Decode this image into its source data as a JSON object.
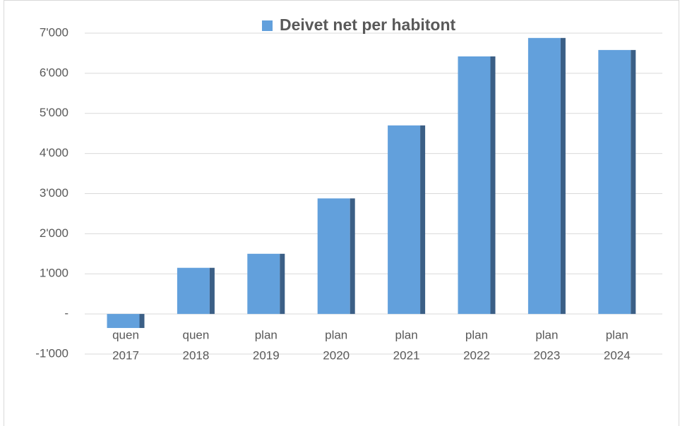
{
  "chart_data": {
    "type": "bar",
    "categories": [
      [
        "quen",
        "2017"
      ],
      [
        "quen",
        "2018"
      ],
      [
        "plan",
        "2019"
      ],
      [
        "plan",
        "2020"
      ],
      [
        "plan",
        "2021"
      ],
      [
        "plan",
        "2022"
      ],
      [
        "plan",
        "2023"
      ],
      [
        "plan",
        "2024"
      ]
    ],
    "series": [
      {
        "name": "Deivet net per habitont",
        "color": "#62a0dc",
        "values": [
          -350,
          1150,
          1500,
          2880,
          4700,
          6420,
          6880,
          6580
        ]
      }
    ],
    "ylim": [
      -1000,
      7000
    ],
    "yticks": [
      {
        "value": -1000,
        "label": "-1'000"
      },
      {
        "value": 0,
        "label": "-"
      },
      {
        "value": 1000,
        "label": "1'000"
      },
      {
        "value": 2000,
        "label": "2'000"
      },
      {
        "value": 3000,
        "label": "3'000"
      },
      {
        "value": 4000,
        "label": "4'000"
      },
      {
        "value": 5000,
        "label": "5'000"
      },
      {
        "value": 6000,
        "label": "6'000"
      },
      {
        "value": 7000,
        "label": "7'000"
      }
    ],
    "grid": true,
    "legend": "top"
  }
}
